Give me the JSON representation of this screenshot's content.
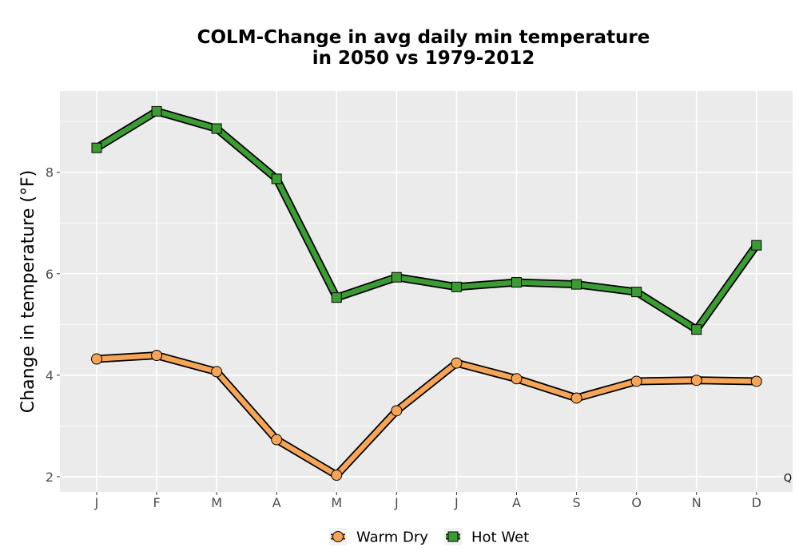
{
  "chart_data": {
    "type": "line",
    "title_lines": [
      "COLM-Change in avg daily min temperature",
      "in 2050 vs 1979-2012"
    ],
    "xlabel": "",
    "ylabel": "Change in temperature (°F)",
    "categories": [
      "J",
      "F",
      "M",
      "A",
      "M",
      "J",
      "J",
      "A",
      "S",
      "O",
      "N",
      "D"
    ],
    "yticks": [
      2,
      4,
      6,
      8
    ],
    "ylim": [
      1.7,
      9.6
    ],
    "grid": true,
    "legend_position": "bottom",
    "corner_note": "Q",
    "series": [
      {
        "name": "Warm Dry",
        "marker": "circle",
        "color": "#f5a55a",
        "values": [
          4.32,
          4.39,
          4.07,
          2.73,
          2.03,
          3.3,
          4.24,
          3.93,
          3.55,
          3.88,
          3.9,
          3.88
        ]
      },
      {
        "name": "Hot Wet",
        "marker": "square",
        "color": "#3d9b35",
        "values": [
          8.48,
          9.2,
          8.86,
          7.87,
          5.53,
          5.93,
          5.74,
          5.83,
          5.79,
          5.64,
          4.9,
          6.56
        ]
      }
    ]
  }
}
